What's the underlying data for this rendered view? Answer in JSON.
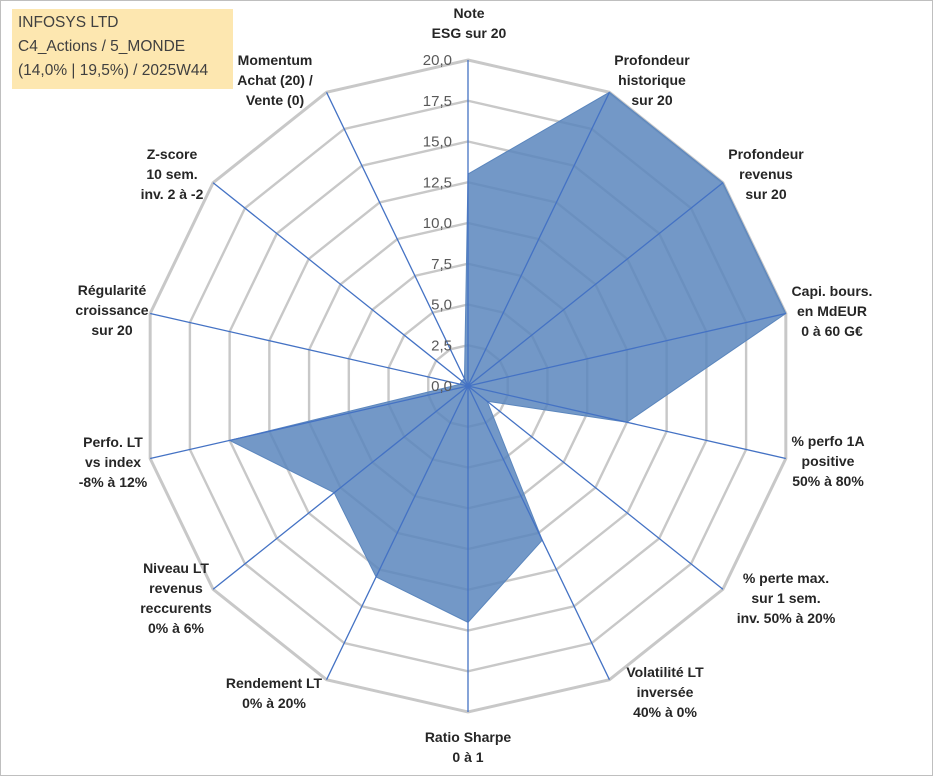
{
  "info": {
    "line1": "INFOSYS LTD",
    "line2": "C4_Actions / 5_MONDE",
    "line3": "(14,0% | 19,5%) / 2025W44"
  },
  "colors": {
    "fill": "#5b86bd",
    "stroke": "#4472c4",
    "grid": "#c8c8c8",
    "tick_text": "#595959"
  },
  "chart_data": {
    "type": "radar",
    "rmax": 20,
    "ticks": [
      "0,0",
      "2,5",
      "5,0",
      "7,5",
      "10,0",
      "12,5",
      "15,0",
      "17,5",
      "20,0"
    ],
    "tick_values": [
      0,
      2.5,
      5,
      7.5,
      10,
      12.5,
      15,
      17.5,
      20
    ],
    "axes": [
      {
        "label": [
          "Note",
          "ESG sur 20"
        ],
        "value": 13.0
      },
      {
        "label": [
          "Profondeur",
          "historique",
          "sur 20"
        ],
        "value": 20.0
      },
      {
        "label": [
          "Profondeur",
          "revenus",
          "sur 20"
        ],
        "value": 20.0
      },
      {
        "label": [
          "Capi. bours.",
          "en MdEUR",
          "0 à 60 G€"
        ],
        "value": 20.0
      },
      {
        "label": [
          "% perfo 1A",
          "positive",
          "50% à 80%"
        ],
        "value": 10.0
      },
      {
        "label": [
          "% perte max.",
          "sur 1 sem.",
          "inv. 50% à 20%"
        ],
        "value": 1.5
      },
      {
        "label": [
          "Volatilité LT",
          "inversée",
          "40% à 0%"
        ],
        "value": 10.5
      },
      {
        "label": [
          "Ratio Sharpe",
          "0 à 1"
        ],
        "value": 14.5
      },
      {
        "label": [
          "Rendement LT",
          "0% à 20%"
        ],
        "value": 13.0
      },
      {
        "label": [
          "Niveau LT",
          "revenus",
          "reccurents",
          "0% à 6%"
        ],
        "value": 10.5
      },
      {
        "label": [
          "Perfo. LT",
          "vs index",
          "-8% à 12%"
        ],
        "value": 15.0
      },
      {
        "label": [
          "Régularité",
          "croissance",
          "sur 20"
        ],
        "value": 0.5
      },
      {
        "label": [
          "Z-score",
          "10 sem.",
          "inv. 2 à -2"
        ],
        "value": 0.5
      },
      {
        "label": [
          "Momentum",
          "Achat (20) /",
          "Vente (0)"
        ],
        "value": 0.5
      }
    ]
  }
}
